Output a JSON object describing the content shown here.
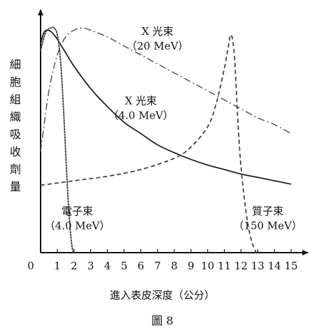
{
  "chart_data": {
    "type": "line",
    "title": "",
    "xlabel": "進入表皮深度（公分）",
    "ylabel": "細胞組織吸收劑量",
    "caption": "圖 8",
    "xlim": [
      0,
      15.5
    ],
    "ylim": [
      0,
      1.05
    ],
    "x_ticks": [
      "0",
      "1",
      "2",
      "3",
      "4",
      "5",
      "6",
      "7",
      "8",
      "9",
      "10",
      "11",
      "12",
      "13",
      "14",
      "15"
    ],
    "grid": false,
    "legend": "none",
    "series": [
      {
        "name": "X 光束（4.0 MeV）",
        "style": "solid",
        "color": "#222222",
        "x": [
          0,
          0.2,
          0.4,
          0.6,
          0.8,
          1,
          1.5,
          2,
          3,
          4,
          5,
          6,
          7,
          8,
          9,
          10,
          11,
          12,
          13,
          14,
          15
        ],
        "y": [
          0.93,
          0.98,
          0.99,
          0.985,
          0.97,
          0.95,
          0.89,
          0.83,
          0.73,
          0.65,
          0.58,
          0.53,
          0.48,
          0.445,
          0.415,
          0.39,
          0.37,
          0.35,
          0.335,
          0.32,
          0.305
        ]
      },
      {
        "name": "X 光束（20 MeV）",
        "style": "dashdot",
        "color": "#555555",
        "x": [
          0,
          0.5,
          1,
          1.5,
          2,
          2.5,
          3,
          4,
          5,
          6,
          7,
          8,
          9,
          10,
          11,
          12,
          13,
          14,
          15
        ],
        "y": [
          0.45,
          0.72,
          0.88,
          0.96,
          0.99,
          1.0,
          0.99,
          0.96,
          0.92,
          0.88,
          0.84,
          0.8,
          0.76,
          0.72,
          0.68,
          0.64,
          0.6,
          0.57,
          0.53
        ]
      },
      {
        "name": "電子束（4.0 MeV）",
        "style": "dotted",
        "color": "#444444",
        "x": [
          0,
          0.3,
          0.6,
          0.8,
          1.0,
          1.2,
          1.4,
          1.6,
          1.8,
          1.95
        ],
        "y": [
          0.9,
          0.98,
          1.0,
          1.0,
          0.97,
          0.85,
          0.6,
          0.3,
          0.08,
          0.0
        ]
      },
      {
        "name": "質子束（150 MeV）",
        "style": "dashed",
        "color": "#444444",
        "x": [
          0,
          2,
          4,
          6,
          8,
          9,
          10,
          10.5,
          11,
          11.2,
          11.4,
          11.6,
          11.8,
          12,
          12.3,
          12.6,
          12.9
        ],
        "y": [
          0.3,
          0.32,
          0.34,
          0.37,
          0.42,
          0.47,
          0.56,
          0.66,
          0.82,
          0.9,
          0.97,
          0.88,
          0.6,
          0.38,
          0.18,
          0.06,
          0.0
        ]
      }
    ],
    "annotations": [
      {
        "lines": [
          "X 光束",
          "（20 MeV）"
        ],
        "at_x": 7.0,
        "at_y": 0.97
      },
      {
        "lines": [
          "X 光束",
          "（4.0 MeV）"
        ],
        "at_x": 6.0,
        "at_y": 0.66
      },
      {
        "lines": [
          "電子束",
          "（4.0 MeV）"
        ],
        "at_x": 2.2,
        "at_y": 0.17
      },
      {
        "lines": [
          "質子束",
          "（150 MeV）"
        ],
        "at_x": 13.6,
        "at_y": 0.17
      }
    ]
  }
}
